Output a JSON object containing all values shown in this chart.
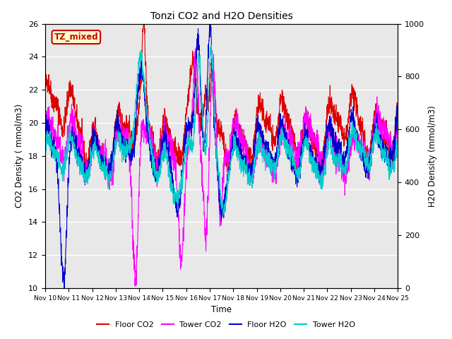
{
  "title": "Tonzi CO2 and H2O Densities",
  "xlabel": "Time",
  "ylabel_left": "CO2 Density ( mmol/m3)",
  "ylabel_right": "H2O Density (mmol/m3)",
  "ylim_left": [
    10,
    26
  ],
  "ylim_right": [
    0,
    1000
  ],
  "xtick_labels": [
    "Nov 10",
    "Nov 11",
    "Nov 12",
    "Nov 13",
    "Nov 14",
    "Nov 15",
    "Nov 16",
    "Nov 17",
    "Nov 18",
    "Nov 19",
    "Nov 20",
    "Nov 21",
    "Nov 22",
    "Nov 23",
    "Nov 24",
    "Nov 25"
  ],
  "annotation_text": "TZ_mixed",
  "annotation_color": "#cc0000",
  "annotation_bg": "#ffffcc",
  "colors": {
    "floor_co2": "#dd0000",
    "tower_co2": "#ff00ff",
    "floor_h2o": "#0000cc",
    "tower_h2o": "#00cccc"
  },
  "legend_labels": [
    "Floor CO2",
    "Tower CO2",
    "Floor H2O",
    "Tower H2O"
  ],
  "background_color": "#e8e8e8",
  "seed": 42,
  "n_points": 2000
}
